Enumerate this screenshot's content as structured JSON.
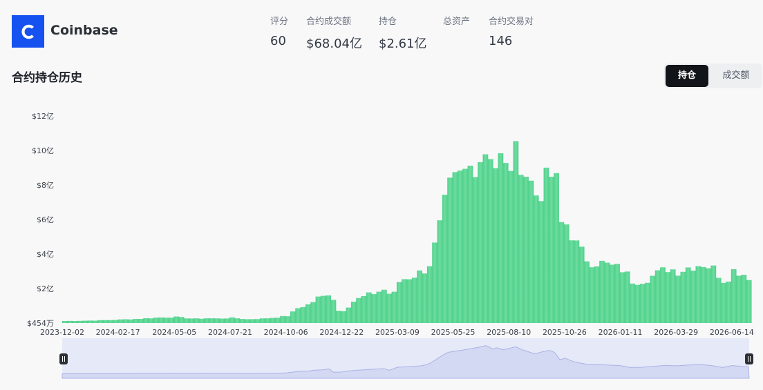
{
  "header": {
    "brand_name": "Coinbase",
    "logo_letter": "C",
    "logo_color": "#1652f0",
    "stats": [
      {
        "label": "评分",
        "value": "60"
      },
      {
        "label": "合约成交额",
        "value": "$68.04亿"
      },
      {
        "label": "持仓",
        "value": "$2.61亿"
      },
      {
        "label": "总资产",
        "value": ""
      },
      {
        "label": "合约交易对",
        "value": "146"
      }
    ]
  },
  "section": {
    "title": "合约持仓历史",
    "toggle": {
      "active": "持仓",
      "inactive": "成交额"
    }
  },
  "chart_data": {
    "type": "bar",
    "title": "",
    "xlabel": "",
    "ylabel": "",
    "y_unit": "亿 USD",
    "ylim": [
      0.0454,
      12
    ],
    "y_ticks": [
      "$454万",
      "$2亿",
      "$4亿",
      "$6亿",
      "$8亿",
      "$10亿",
      "$12亿"
    ],
    "x_ticks": [
      "2023-12-02",
      "2024-02-17",
      "2024-05-05",
      "2024-07-21",
      "2024-10-06",
      "2024-12-22",
      "2025-03-09",
      "2025-05-25",
      "2025-08-10",
      "2025-10-26",
      "2026-01-11",
      "2026-03-29",
      "2026-06-14"
    ],
    "x_range": [
      "2023-12-02",
      "2026-07-08"
    ],
    "bar_color": "#4fd18b",
    "series": [
      {
        "values_by_date": [
          [
            "2023-12-02",
            0.12
          ],
          [
            "2024-01-01",
            0.14
          ],
          [
            "2024-02-01",
            0.17
          ],
          [
            "2024-02-17",
            0.2
          ],
          [
            "2024-03-15",
            0.25
          ],
          [
            "2024-04-10",
            0.32
          ],
          [
            "2024-05-05",
            0.35
          ],
          [
            "2024-05-20",
            0.28
          ],
          [
            "2024-06-01",
            0.25
          ],
          [
            "2024-06-15",
            0.28
          ],
          [
            "2024-07-01",
            0.26
          ],
          [
            "2024-07-21",
            0.3
          ],
          [
            "2024-08-10",
            0.22
          ],
          [
            "2024-09-01",
            0.26
          ],
          [
            "2024-09-20",
            0.33
          ],
          [
            "2024-10-06",
            0.42
          ],
          [
            "2024-10-20",
            0.9
          ],
          [
            "2024-11-05",
            1.1
          ],
          [
            "2024-11-15",
            1.45
          ],
          [
            "2024-11-25",
            1.55
          ],
          [
            "2024-12-05",
            1.9
          ],
          [
            "2024-12-10",
            0.7
          ],
          [
            "2024-12-22",
            0.75
          ],
          [
            "2025-01-05",
            1.3
          ],
          [
            "2025-01-20",
            1.55
          ],
          [
            "2025-02-05",
            1.8
          ],
          [
            "2025-02-20",
            2.0
          ],
          [
            "2025-02-25",
            1.3
          ],
          [
            "2025-03-09",
            2.5
          ],
          [
            "2025-03-25",
            2.7
          ],
          [
            "2025-04-10",
            3.0
          ],
          [
            "2025-04-20",
            3.5
          ],
          [
            "2025-05-01",
            5.2
          ],
          [
            "2025-05-10",
            6.8
          ],
          [
            "2025-05-18",
            7.9
          ],
          [
            "2025-05-25",
            8.2
          ],
          [
            "2025-06-05",
            8.6
          ],
          [
            "2025-06-20",
            9.3
          ],
          [
            "2025-07-01",
            9.8
          ],
          [
            "2025-07-10",
            10.4
          ],
          [
            "2025-07-18",
            9.1
          ],
          [
            "2025-07-25",
            9.6
          ],
          [
            "2025-08-01",
            8.8
          ],
          [
            "2025-08-10",
            9.3
          ],
          [
            "2025-08-20",
            9.9
          ],
          [
            "2025-08-28",
            8.9
          ],
          [
            "2025-09-05",
            8.2
          ],
          [
            "2025-09-15",
            7.3
          ],
          [
            "2025-09-25",
            8.1
          ],
          [
            "2025-10-05",
            8.6
          ],
          [
            "2025-10-12",
            8.0
          ],
          [
            "2025-10-20",
            5.0
          ],
          [
            "2025-10-26",
            5.9
          ],
          [
            "2025-11-05",
            4.7
          ],
          [
            "2025-11-15",
            4.1
          ],
          [
            "2025-11-25",
            3.6
          ],
          [
            "2025-12-10",
            3.5
          ],
          [
            "2025-12-25",
            3.3
          ],
          [
            "2026-01-11",
            3.1
          ],
          [
            "2026-01-25",
            2.4
          ],
          [
            "2026-02-10",
            2.5
          ],
          [
            "2026-02-25",
            2.8
          ],
          [
            "2026-03-15",
            3.2
          ],
          [
            "2026-03-29",
            3.0
          ],
          [
            "2026-04-15",
            3.3
          ],
          [
            "2026-05-01",
            3.45
          ],
          [
            "2026-05-15",
            3.2
          ],
          [
            "2026-06-01",
            2.4
          ],
          [
            "2026-06-14",
            3.1
          ],
          [
            "2026-06-25",
            2.9
          ],
          [
            "2026-07-08",
            2.61
          ]
        ]
      }
    ],
    "navigator": {
      "range": [
        "2023-12-02",
        "2026-07-08"
      ]
    }
  }
}
